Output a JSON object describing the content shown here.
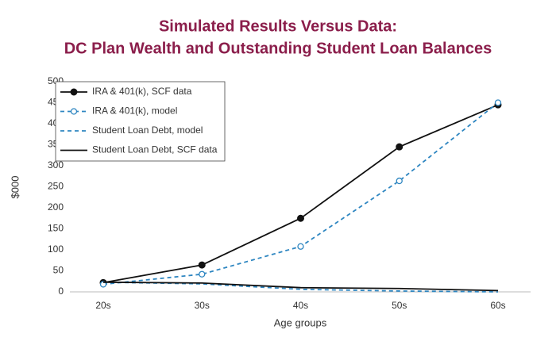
{
  "chart_data": {
    "type": "line",
    "title": [
      "Simulated Results Versus Data:",
      "DC Plan Wealth and Outstanding Student Loan Balances"
    ],
    "x_label": "Age groups",
    "y_label": "$000",
    "categories": [
      "20s",
      "30s",
      "40s",
      "50s",
      "60s"
    ],
    "ylim": [
      0,
      500
    ],
    "yticks": [
      0,
      50,
      100,
      150,
      200,
      250,
      300,
      350,
      400,
      450,
      500
    ],
    "grid": false,
    "legend": "top-left",
    "series": [
      {
        "name": "IRA & 401(k), SCF data",
        "color": "#111111",
        "dashed": false,
        "marker": "filled",
        "values": [
          22,
          64,
          175,
          345,
          445
        ]
      },
      {
        "name": "IRA & 401(k), model",
        "color": "#2e86c1",
        "dashed": true,
        "marker": "open",
        "values": [
          18,
          42,
          108,
          264,
          450
        ]
      },
      {
        "name": "Student Loan Debt, model",
        "color": "#2e86c1",
        "dashed": true,
        "marker": "none",
        "values": [
          23,
          19,
          6,
          2,
          0
        ]
      },
      {
        "name": "Student Loan Debt, SCF data",
        "color": "#111111",
        "dashed": false,
        "marker": "none",
        "values": [
          23,
          21,
          10,
          8,
          3
        ]
      }
    ]
  }
}
